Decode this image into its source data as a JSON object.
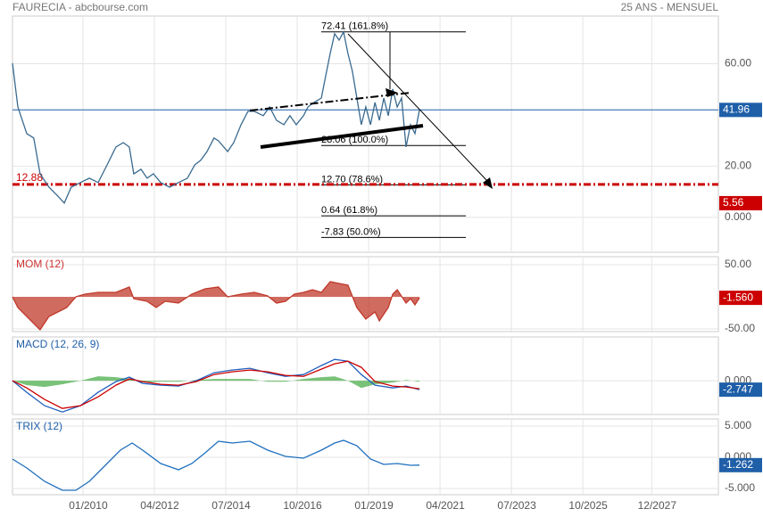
{
  "chart_data": [
    {
      "type": "line",
      "title": "FAURECIA - abcbourse.com",
      "subtitle": "25 ANS - MENSUEL",
      "xlim": [
        2007.78,
        2030.02
      ],
      "ylim": [
        -13.6,
        78.6
      ],
      "yticks": [
        {
          "value": 60,
          "label": "60.00"
        },
        {
          "value": 20,
          "label": "20.00"
        },
        {
          "value": 0,
          "label": "0.000"
        }
      ],
      "x": [
        2007.78,
        2007.95,
        2008.23,
        2008.45,
        2008.65,
        2008.93,
        2009.21,
        2009.41,
        2009.63,
        2009.92,
        2010.2,
        2010.48,
        2010.76,
        2011.04,
        2011.27,
        2011.46,
        2011.6,
        2011.83,
        2012.02,
        2012.22,
        2012.45,
        2012.73,
        2013.01,
        2013.29,
        2013.52,
        2013.71,
        2013.91,
        2014.13,
        2014.27,
        2014.56,
        2014.75,
        2014.98,
        2015.2,
        2015.4,
        2015.68,
        2015.88,
        2016.1,
        2016.33,
        2016.52,
        2016.72,
        2016.95,
        2017.09,
        2017.28,
        2017.51,
        2017.65,
        2017.79,
        2017.93,
        2018.07,
        2018.21,
        2018.35,
        2018.49,
        2018.63,
        2018.77,
        2018.91,
        2019.06,
        2019.2,
        2019.34,
        2019.48,
        2019.62,
        2019.76,
        2019.9,
        2020.04,
        2020.18,
        2020.32,
        2020.46,
        2020.6
      ],
      "series": [
        {
          "color": "#3a6a8f",
          "values": [
            60.2,
            43.1,
            32.7,
            31.0,
            17.0,
            11.8,
            8.3,
            5.6,
            11.8,
            13.6,
            15.3,
            13.6,
            20.5,
            27.5,
            29.2,
            27.5,
            17.0,
            18.8,
            15.3,
            17.0,
            13.6,
            11.8,
            13.6,
            15.3,
            20.5,
            22.3,
            25.7,
            31.0,
            29.9,
            25.7,
            29.2,
            36.2,
            41.4,
            41.4,
            39.7,
            43.1,
            37.9,
            36.2,
            39.7,
            36.2,
            39.7,
            43.1,
            44.9,
            46.6,
            55.3,
            64.0,
            71.7,
            69.2,
            72.4,
            64.0,
            57.0,
            46.6,
            36.2,
            43.1,
            36.2,
            44.9,
            37.9,
            46.6,
            39.7,
            50.1,
            43.1,
            46.6,
            27.5,
            36.2,
            32.7,
            41.96
          ]
        }
      ],
      "hlines": [
        {
          "value": 41.96,
          "label": "41.96",
          "color": "#1f5fa8",
          "style": "solid",
          "label_pos": "right"
        },
        {
          "value": 12.88,
          "label": "12.88",
          "color": "#cc0000",
          "style": "dashdot",
          "label_pos": "left"
        },
        {
          "value": 5.56,
          "label": "5.56",
          "color": "#cc0000",
          "style": "none",
          "label_pos": "right"
        }
      ],
      "fibs": [
        {
          "value": 72.41,
          "label": "72.41  (161.8%)"
        },
        {
          "value": 28.06,
          "label": "28.06  (100.0%)"
        },
        {
          "value": 12.7,
          "label": "12.70  (78.6%)"
        },
        {
          "value": 0.64,
          "label": "0.64  (61.8%)"
        },
        {
          "value": -7.83,
          "label": "-7.83  (50.0%)"
        }
      ]
    },
    {
      "type": "area",
      "title": "MOM (12)",
      "title_color": "#cc3333",
      "xlim": [
        2007.78,
        2030.02
      ],
      "ylim": [
        -54.2,
        62.5
      ],
      "yticks": [
        {
          "value": 50,
          "label": "50.00"
        },
        {
          "value": -50,
          "label": "-50.00"
        }
      ],
      "x": [
        2007.78,
        2007.95,
        2008.23,
        2008.65,
        2008.93,
        2009.21,
        2009.49,
        2009.78,
        2010.06,
        2010.48,
        2011.04,
        2011.46,
        2011.6,
        2012.02,
        2012.31,
        2012.59,
        2013.01,
        2013.43,
        2013.85,
        2014.27,
        2014.56,
        2014.98,
        2015.4,
        2015.82,
        2016.1,
        2016.38,
        2016.66,
        2016.95,
        2017.23,
        2017.51,
        2017.79,
        2018.07,
        2018.35,
        2018.63,
        2018.91,
        2019.2,
        2019.34,
        2019.62,
        2019.76,
        2019.9,
        2020.18,
        2020.32,
        2020.46,
        2020.6
      ],
      "series": [
        {
          "color": "#c0392b",
          "values": [
            0,
            -16.7,
            -30.6,
            -51.4,
            -30.6,
            -23.6,
            -16.7,
            0,
            4.2,
            6.9,
            6.9,
            15.3,
            -2.8,
            -6.9,
            -16.7,
            -6.9,
            -9.7,
            4.2,
            12.5,
            15.3,
            0,
            4.2,
            6.9,
            1.4,
            -9.7,
            -6.9,
            4.2,
            6.9,
            11.1,
            6.9,
            23.6,
            20.8,
            18.1,
            -16.7,
            -34.7,
            -23.6,
            -37.5,
            -16.7,
            4.2,
            11.1,
            -9.7,
            -2.8,
            -12.5,
            -1.56
          ]
        }
      ],
      "last": {
        "value": -1.56,
        "label": "-1.560",
        "color": "#cc0000"
      }
    },
    {
      "type": "line",
      "title": "MACD (12, 26, 9)",
      "title_color": "#1f5fa8",
      "xlim": [
        2007.78,
        2030.02
      ],
      "ylim": [
        -10.4,
        13.5
      ],
      "yticks": [
        {
          "value": 0,
          "label": "0.000"
        }
      ],
      "x": [
        2007.78,
        2008.23,
        2008.79,
        2009.35,
        2009.92,
        2010.48,
        2011.04,
        2011.46,
        2011.88,
        2012.45,
        2013.01,
        2013.57,
        2014.13,
        2014.7,
        2015.26,
        2015.82,
        2016.38,
        2016.95,
        2017.51,
        2017.93,
        2018.35,
        2018.77,
        2019.2,
        2019.76,
        2020.18,
        2020.6
      ],
      "series": [
        {
          "color": "#4cae4c",
          "area": true,
          "values": [
            0,
            -1.37,
            -1.92,
            -1.1,
            0,
            1.38,
            1.1,
            0.55,
            -0.55,
            -0.27,
            -0.28,
            0.27,
            0.55,
            0.55,
            0.55,
            -0.28,
            -0.28,
            0.55,
            1.1,
            1.37,
            0,
            -2.2,
            -1.1,
            -0.55,
            0.27,
            -0.28
          ]
        },
        {
          "color": "#1f5fbf",
          "values": [
            0,
            -3.57,
            -7.69,
            -9.62,
            -7.69,
            -3.57,
            -0.27,
            1.1,
            -0.82,
            -1.37,
            -1.65,
            0,
            2.47,
            3.3,
            3.85,
            2.47,
            1.37,
            1.92,
            4.67,
            6.59,
            6.04,
            1.92,
            -1.37,
            -2.2,
            -1.65,
            -2.747
          ]
        },
        {
          "color": "#cc0000",
          "values": [
            0,
            -2.2,
            -5.77,
            -8.52,
            -7.69,
            -4.95,
            -1.37,
            0.55,
            -0.27,
            -1.1,
            -1.37,
            -0.27,
            1.92,
            2.75,
            3.3,
            2.75,
            1.65,
            1.37,
            3.57,
            5.22,
            6.04,
            4.12,
            -0.27,
            -1.65,
            -1.92,
            -2.47
          ]
        }
      ],
      "last": {
        "value": -2.747,
        "label": "-2.747",
        "color": "#1f5fa8"
      }
    },
    {
      "type": "line",
      "title": "TRIX (12)",
      "title_color": "#1f5fa8",
      "xlim": [
        2007.78,
        2030.02
      ],
      "ylim": [
        -6.0,
        6.14
      ],
      "yticks": [
        {
          "value": 5,
          "label": "5.000"
        },
        {
          "value": 0,
          "label": "0.000"
        },
        {
          "value": -5,
          "label": "-5.000"
        }
      ],
      "xticks": [
        {
          "value": 2010.0,
          "label": "01/2010"
        },
        {
          "value": 2012.25,
          "label": "04/2012"
        },
        {
          "value": 2014.5,
          "label": "07/2014"
        },
        {
          "value": 2016.75,
          "label": "10/2016"
        },
        {
          "value": 2019.0,
          "label": "01/2019"
        },
        {
          "value": 2021.25,
          "label": "04/2021"
        },
        {
          "value": 2023.5,
          "label": "07/2023"
        },
        {
          "value": 2025.75,
          "label": "10/2025"
        },
        {
          "value": 2027.92,
          "label": "12/2027"
        }
      ],
      "x": [
        2007.78,
        2008.23,
        2008.79,
        2009.35,
        2009.78,
        2010.2,
        2010.76,
        2011.18,
        2011.55,
        2011.88,
        2012.45,
        2013.01,
        2013.43,
        2013.85,
        2014.27,
        2014.7,
        2015.26,
        2015.82,
        2016.38,
        2016.95,
        2017.51,
        2017.93,
        2018.21,
        2018.63,
        2019.06,
        2019.48,
        2019.9,
        2020.32,
        2020.6
      ],
      "series": [
        {
          "color": "#1f6fbf",
          "values": [
            -0.29,
            -1.71,
            -3.86,
            -5.29,
            -5.29,
            -3.86,
            -1,
            1.14,
            2.29,
            1.14,
            -1,
            -2,
            -1,
            0.71,
            2.57,
            2.29,
            2.57,
            1.14,
            0.14,
            -0.14,
            1.14,
            2.29,
            2.71,
            1.86,
            -0.29,
            -1.14,
            -1,
            -1.29,
            -1.262
          ]
        }
      ],
      "last": {
        "value": -1.262,
        "label": "-1.262",
        "color": "#1f5fa8"
      }
    }
  ]
}
